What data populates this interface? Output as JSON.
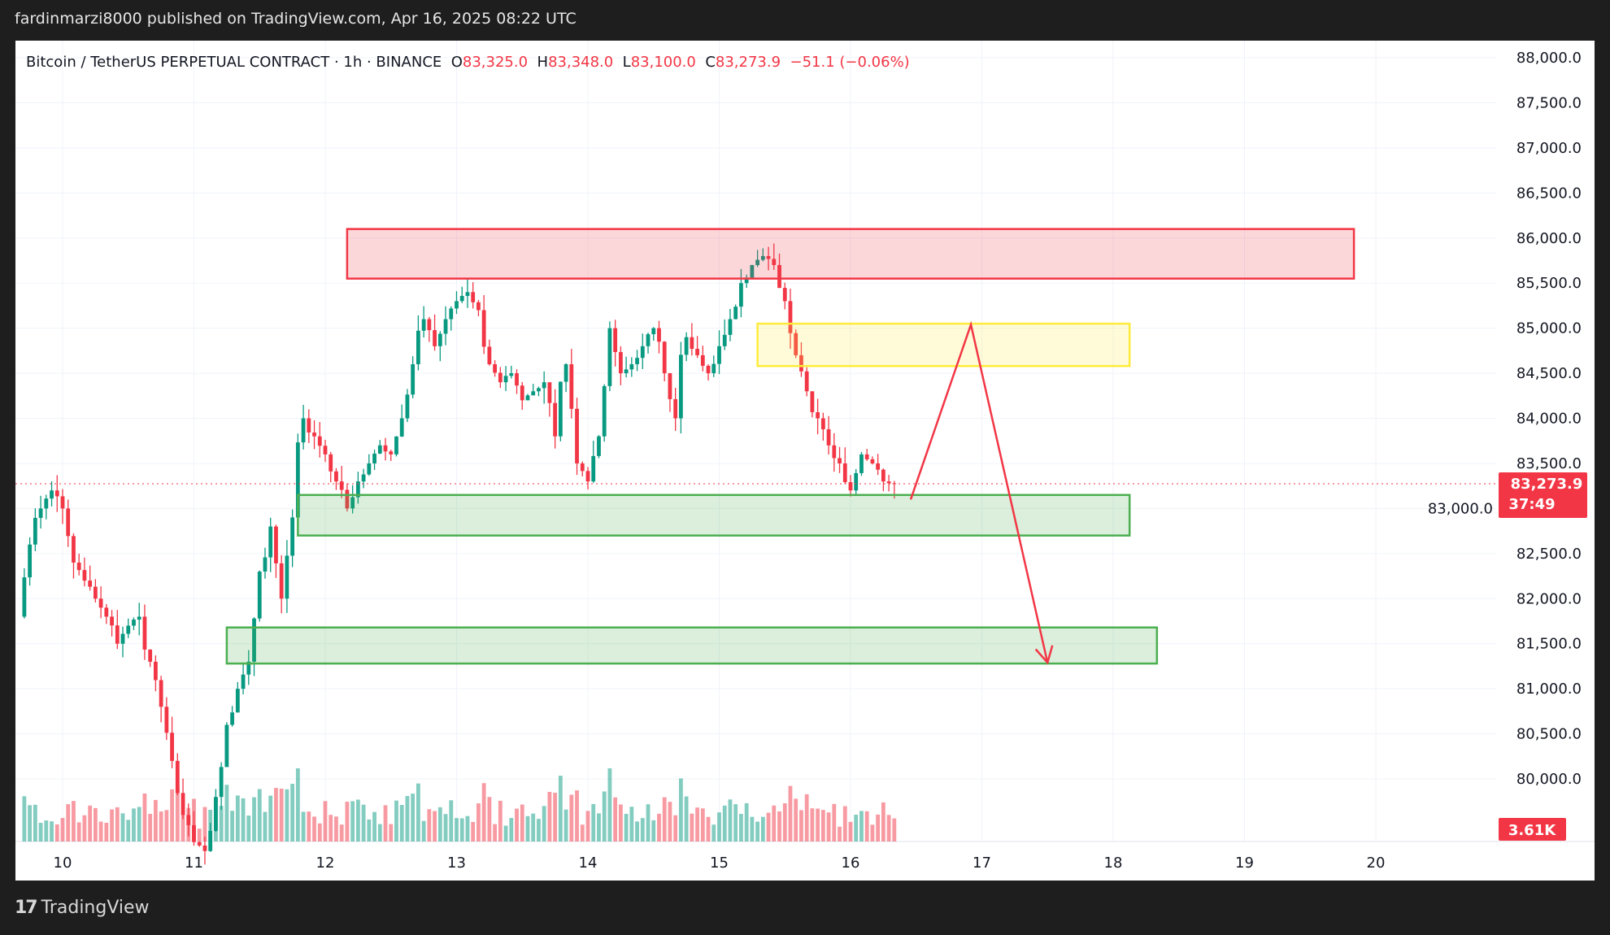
{
  "header": {
    "publisher_line": "fardinmarzi8000 published on TradingView.com, Apr 16, 2025 08:22 UTC"
  },
  "legend": {
    "symbol": "Bitcoin / TetherUS PERPETUAL CONTRACT · 1h · BINANCE",
    "open_label": "O",
    "open": "83,325.0",
    "high_label": "H",
    "high": "83,348.0",
    "low_label": "L",
    "low": "83,100.0",
    "close_label": "C",
    "close": "83,273.9",
    "change": "−51.1 (−0.06%)"
  },
  "footer": {
    "brand": "TradingView",
    "logo_icon": "tradingview-logo-icon"
  },
  "chart_data": {
    "type": "candlestick",
    "symbol": "BTCUSDT.P",
    "interval": "1h",
    "approx_closes_2h_start": "2025-04-09 18:00",
    "approx_closes_2h": [
      82600,
      83000,
      83200,
      83000,
      82400,
      82200,
      82000,
      81800,
      81500,
      81700,
      81800,
      81300,
      80800,
      80200,
      79600,
      79300,
      79200,
      79800,
      80600,
      81000,
      81300,
      82300,
      82800,
      82000,
      82900,
      84000,
      83800,
      83600,
      83300,
      83000,
      83300,
      83500,
      83700,
      83600,
      84000,
      84600,
      85100,
      84800,
      85100,
      85300,
      85400,
      85200,
      84600,
      84400,
      84500,
      84200,
      84300,
      84400,
      83800,
      84600,
      83500,
      83300,
      83800,
      85000,
      84500,
      84600,
      84800,
      85000,
      84500,
      84000,
      84900,
      84700,
      84500,
      84800,
      85100,
      85500,
      85700,
      85800,
      85700,
      85300,
      84700,
      84300,
      84000,
      83700,
      83500,
      83200,
      83600,
      83500,
      83300,
      83273.9
    ],
    "first_open": 81800,
    "ylim": [
      79700,
      88200
    ],
    "y_ticks": [
      "88,000.0",
      "87,500.0",
      "87,000.0",
      "86,500.0",
      "86,000.0",
      "85,500.0",
      "85,000.0",
      "84,500.0",
      "84,000.0",
      "83,500.0",
      "83,000.0",
      "82,500.0",
      "82,000.0",
      "81,500.0",
      "81,000.0",
      "80,500.0",
      "80,000.0"
    ],
    "y_tick_values": [
      88000,
      87500,
      87000,
      86500,
      86000,
      85500,
      85000,
      84500,
      84000,
      83500,
      83000,
      82500,
      82000,
      81500,
      81000,
      80500,
      80000
    ],
    "x_ticks": [
      "10",
      "11",
      "12",
      "13",
      "14",
      "15",
      "16",
      "17",
      "18",
      "19",
      "20"
    ],
    "x_tick_dates": [
      "2025-04-10",
      "2025-04-11",
      "2025-04-12",
      "2025-04-13",
      "2025-04-14",
      "2025-04-15",
      "2025-04-16",
      "2025-04-17",
      "2025-04-18",
      "2025-04-19",
      "2025-04-20"
    ],
    "last_price": {
      "label": "83,273.9",
      "value": 83273.9,
      "countdown": "37:49"
    },
    "volume_label": "3.61K",
    "zones": [
      {
        "kind": "resistance",
        "color": "#f23645",
        "from": "2025-04-12 04:00",
        "to": "2025-04-19 20:00",
        "top": 86100,
        "bottom": 85550
      },
      {
        "kind": "retest",
        "color": "#ffeb3b",
        "from": "2025-04-15 07:00",
        "to": "2025-04-18 03:00",
        "top": 85050,
        "bottom": 84580
      },
      {
        "kind": "support",
        "color": "#4caf50",
        "from": "2025-04-11 19:00",
        "to": "2025-04-18 03:00",
        "top": 83150,
        "bottom": 82700
      },
      {
        "kind": "support",
        "color": "#4caf50",
        "from": "2025-04-11 06:00",
        "to": "2025-04-18 08:00",
        "top": 81680,
        "bottom": 81280
      }
    ],
    "projection_path": [
      {
        "time": "2025-04-16 11:00",
        "price": 83100
      },
      {
        "time": "2025-04-16 22:00",
        "price": 85040
      },
      {
        "time": "2025-04-17 12:00",
        "price": 81290
      }
    ],
    "colors": {
      "up": "#089981",
      "down": "#f23645",
      "projection": "#f23645"
    }
  }
}
